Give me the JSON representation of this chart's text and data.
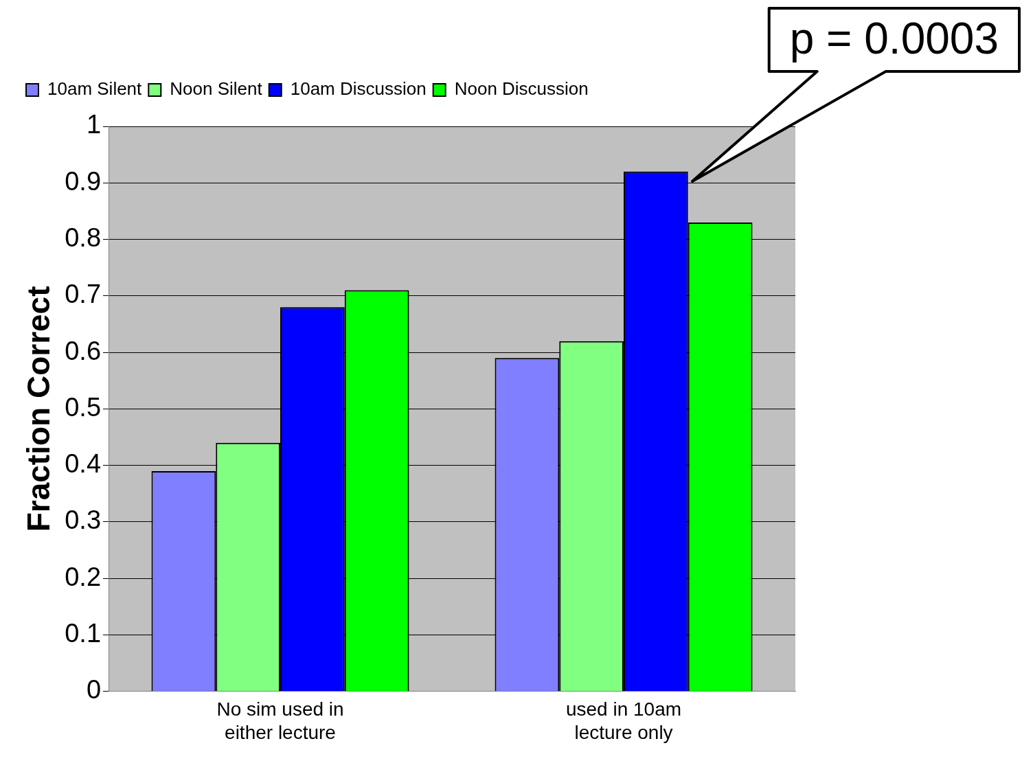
{
  "chart_data": {
    "type": "bar",
    "ylabel": "Fraction Correct",
    "categories": [
      "No sim used in either lecture",
      "used in 10am lecture only"
    ],
    "series": [
      {
        "name": "10am Silent",
        "color": "#7f7fff",
        "values": [
          0.39,
          0.59
        ]
      },
      {
        "name": "Noon Silent",
        "color": "#80ff80",
        "values": [
          0.44,
          0.62
        ]
      },
      {
        "name": "10am Discussion",
        "color": "#0000ff",
        "values": [
          0.68,
          0.92
        ]
      },
      {
        "name": "Noon Discussion",
        "color": "#00ff00",
        "values": [
          0.71,
          0.83
        ]
      }
    ],
    "ylim": [
      0,
      1
    ],
    "yticks": [
      0,
      0.1,
      0.2,
      0.3,
      0.4,
      0.5,
      0.6,
      0.7,
      0.8,
      0.9,
      1
    ],
    "grid": "y",
    "legend": "top left",
    "annotations": [
      "p = 0.0003"
    ]
  }
}
